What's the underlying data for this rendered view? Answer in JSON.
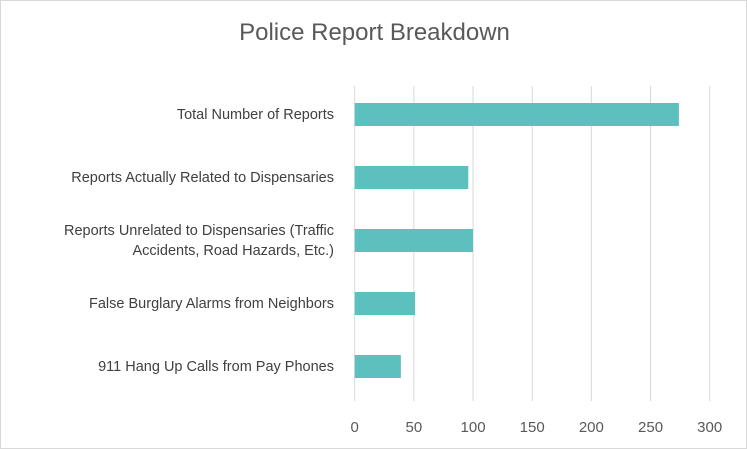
{
  "chart_data": {
    "type": "bar",
    "orientation": "horizontal",
    "title": "Police Report Breakdown",
    "categories": [
      "Total Number of Reports",
      "Reports Actually Related to Dispensaries",
      "Reports Unrelated to Dispensaries (Traffic Accidents, Road Hazards, Etc.)",
      "False Burglary Alarms from Neighbors",
      "911 Hang Up Calls from Pay Phones"
    ],
    "values": [
      274,
      96,
      100,
      51,
      39
    ],
    "xlim": [
      0,
      300
    ],
    "xticks": [
      "0",
      "50",
      "100",
      "150",
      "200",
      "250",
      "300"
    ],
    "grid": true,
    "legend": "none",
    "bar_color": "#5bc0be"
  }
}
